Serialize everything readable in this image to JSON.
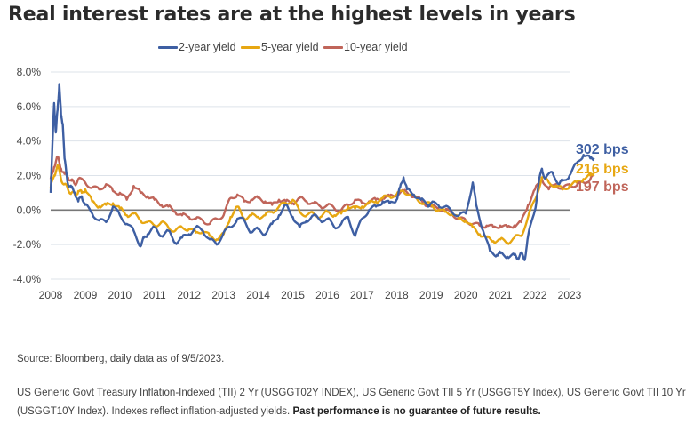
{
  "title": "Real interest rates are at the highest levels in years",
  "footer": {
    "source": "Source: Bloomberg, daily data as of 9/5/2023.",
    "notes": "US Generic Govt Treasury Inflation-Indexed (TII) 2 Yr (USGGT02Y INDEX), US Generic Govt TII 5 Yr (USGGT5Y Index), US Generic Govt TII 10 Yr (USGGT10Y Index). Indexes reflect inflation-adjusted yields.",
    "disclaimer": "Past performance is no guarantee of future results."
  },
  "chart_data": {
    "type": "line",
    "title": "Real interest rates are at the highest levels in years",
    "xlabel": "",
    "ylabel": "",
    "xlim": [
      2008,
      2023
    ],
    "ylim": [
      -4.0,
      8.0
    ],
    "x_ticks": [
      "2008",
      "2009",
      "2010",
      "2011",
      "2012",
      "2013",
      "2014",
      "2015",
      "2016",
      "2017",
      "2018",
      "2019",
      "2020",
      "2021",
      "2022",
      "2023"
    ],
    "y_ticks": [
      "8.0%",
      "6.0%",
      "4.0%",
      "2.0%",
      "0.0%",
      "-2.0%",
      "-4.0%"
    ],
    "y_tick_values": [
      8,
      6,
      4,
      2,
      0,
      -2,
      -4
    ],
    "grid": true,
    "legend_position": "top-center",
    "series": [
      {
        "name": "2-year yield",
        "color": "#3e5fa3",
        "end_label": "302 bps",
        "x": [
          2008.0,
          2008.1,
          2008.15,
          2008.2,
          2008.25,
          2008.3,
          2008.35,
          2008.4,
          2008.5,
          2008.6,
          2008.7,
          2008.8,
          2008.9,
          2009.0,
          2009.2,
          2009.4,
          2009.6,
          2009.8,
          2010.0,
          2010.2,
          2010.4,
          2010.6,
          2010.7,
          2010.8,
          2011.0,
          2011.2,
          2011.4,
          2011.6,
          2011.8,
          2012.0,
          2012.2,
          2012.4,
          2012.6,
          2012.8,
          2013.0,
          2013.2,
          2013.4,
          2013.6,
          2013.8,
          2014.0,
          2014.2,
          2014.4,
          2014.6,
          2014.8,
          2015.0,
          2015.2,
          2015.4,
          2015.6,
          2015.8,
          2016.0,
          2016.2,
          2016.4,
          2016.6,
          2016.8,
          2017.0,
          2017.2,
          2017.4,
          2017.6,
          2017.8,
          2018.0,
          2018.1,
          2018.2,
          2018.3,
          2018.5,
          2018.7,
          2018.9,
          2019.0,
          2019.2,
          2019.4,
          2019.6,
          2019.8,
          2020.0,
          2020.2,
          2020.3,
          2020.5,
          2020.7,
          2020.9,
          2021.0,
          2021.2,
          2021.4,
          2021.5,
          2021.6,
          2021.7,
          2021.8,
          2022.0,
          2022.1,
          2022.2,
          2022.3,
          2022.5,
          2022.7,
          2022.8,
          2023.0,
          2023.2,
          2023.4,
          2023.6,
          2023.7
        ],
        "values": [
          1.0,
          6.2,
          4.5,
          5.8,
          7.3,
          5.5,
          5.0,
          3.0,
          1.5,
          1.3,
          1.0,
          0.5,
          0.8,
          0.3,
          -0.2,
          -0.6,
          -0.7,
          0.2,
          -0.3,
          -0.8,
          -1.2,
          -2.1,
          -1.6,
          -1.4,
          -1.0,
          -1.5,
          -1.2,
          -1.9,
          -1.6,
          -1.4,
          -1.0,
          -1.2,
          -1.7,
          -2.0,
          -1.3,
          -1.0,
          -0.5,
          -0.6,
          -1.3,
          -1.1,
          -1.4,
          -0.8,
          -0.3,
          0.3,
          -0.4,
          -1.0,
          -0.6,
          -0.3,
          -0.6,
          -0.5,
          -1.0,
          -0.8,
          -0.4,
          -1.5,
          -0.5,
          0.0,
          0.2,
          0.5,
          0.4,
          0.6,
          1.3,
          1.9,
          1.2,
          0.9,
          0.6,
          0.3,
          0.4,
          0.3,
          0.2,
          -0.1,
          -0.3,
          -0.2,
          1.6,
          0.3,
          -1.2,
          -2.4,
          -2.6,
          -2.5,
          -2.7,
          -2.6,
          -2.8,
          -2.5,
          -2.9,
          -1.5,
          0.0,
          1.5,
          2.4,
          1.8,
          2.2,
          1.5,
          1.7,
          2.0,
          2.7,
          3.2,
          3.0,
          3.02
        ]
      },
      {
        "name": "5-year yield",
        "color": "#e7a712",
        "end_label": "216 bps",
        "x": [
          2008.0,
          2008.1,
          2008.2,
          2008.3,
          2008.4,
          2008.5,
          2008.6,
          2008.7,
          2008.8,
          2008.9,
          2009.0,
          2009.2,
          2009.4,
          2009.6,
          2009.8,
          2010.0,
          2010.2,
          2010.4,
          2010.6,
          2010.8,
          2011.0,
          2011.2,
          2011.4,
          2011.6,
          2011.8,
          2012.0,
          2012.2,
          2012.4,
          2012.6,
          2012.8,
          2013.0,
          2013.2,
          2013.4,
          2013.6,
          2013.8,
          2014.0,
          2014.2,
          2014.4,
          2014.6,
          2014.8,
          2015.0,
          2015.2,
          2015.4,
          2015.6,
          2015.8,
          2016.0,
          2016.2,
          2016.4,
          2016.6,
          2016.8,
          2017.0,
          2017.2,
          2017.4,
          2017.6,
          2017.8,
          2018.0,
          2018.2,
          2018.4,
          2018.6,
          2018.8,
          2019.0,
          2019.2,
          2019.4,
          2019.6,
          2019.8,
          2020.0,
          2020.2,
          2020.4,
          2020.6,
          2020.8,
          2021.0,
          2021.2,
          2021.4,
          2021.6,
          2021.8,
          2022.0,
          2022.2,
          2022.4,
          2022.6,
          2022.8,
          2023.0,
          2023.2,
          2023.4,
          2023.6,
          2023.7
        ],
        "values": [
          1.3,
          2.0,
          2.6,
          1.8,
          1.5,
          1.2,
          1.0,
          0.9,
          1.1,
          1.0,
          1.2,
          0.5,
          0.2,
          0.3,
          0.4,
          0.1,
          -0.3,
          -0.2,
          -0.6,
          -0.7,
          -0.9,
          -0.7,
          -1.0,
          -1.2,
          -1.0,
          -1.1,
          -1.3,
          -1.2,
          -1.5,
          -1.7,
          -1.4,
          -0.4,
          0.2,
          -0.5,
          -0.3,
          -0.4,
          -0.3,
          -0.1,
          0.2,
          0.4,
          0.6,
          -0.1,
          -0.3,
          -0.2,
          -0.4,
          -0.1,
          -0.3,
          -0.2,
          0.2,
          0.1,
          0.2,
          0.4,
          0.5,
          0.7,
          0.8,
          0.9,
          1.1,
          0.9,
          0.6,
          0.4,
          0.3,
          0.0,
          -0.1,
          -0.2,
          -0.5,
          -0.6,
          -1.0,
          -1.4,
          -1.6,
          -1.8,
          -1.7,
          -1.9,
          -1.6,
          -1.5,
          -0.4,
          0.6,
          1.9,
          1.6,
          1.4,
          1.2,
          1.4,
          1.6,
          1.8,
          2.0,
          2.16
        ]
      },
      {
        "name": "10-year yield",
        "color": "#c0655a",
        "end_label": "197 bps",
        "x": [
          2008.0,
          2008.1,
          2008.2,
          2008.3,
          2008.4,
          2008.5,
          2008.6,
          2008.7,
          2008.8,
          2009.0,
          2009.2,
          2009.4,
          2009.6,
          2009.8,
          2010.0,
          2010.2,
          2010.4,
          2010.6,
          2010.8,
          2011.0,
          2011.2,
          2011.4,
          2011.6,
          2011.8,
          2012.0,
          2012.2,
          2012.4,
          2012.6,
          2012.8,
          2013.0,
          2013.2,
          2013.4,
          2013.6,
          2013.8,
          2014.0,
          2014.2,
          2014.4,
          2014.6,
          2014.8,
          2015.0,
          2015.2,
          2015.4,
          2015.6,
          2015.8,
          2016.0,
          2016.2,
          2016.4,
          2016.6,
          2016.8,
          2017.0,
          2017.2,
          2017.4,
          2017.6,
          2017.8,
          2018.0,
          2018.2,
          2018.4,
          2018.6,
          2018.8,
          2019.0,
          2019.2,
          2019.4,
          2019.6,
          2019.8,
          2020.0,
          2020.2,
          2020.4,
          2020.6,
          2020.8,
          2021.0,
          2021.2,
          2021.4,
          2021.6,
          2021.8,
          2022.0,
          2022.2,
          2022.4,
          2022.6,
          2022.8,
          2023.0,
          2023.2,
          2023.4,
          2023.6,
          2023.7
        ],
        "values": [
          1.8,
          2.5,
          3.1,
          2.4,
          2.1,
          1.9,
          1.7,
          1.5,
          1.8,
          1.6,
          1.3,
          1.2,
          1.5,
          1.1,
          1.0,
          0.6,
          1.4,
          1.0,
          0.8,
          0.6,
          0.3,
          0.2,
          -0.1,
          -0.3,
          -0.4,
          -0.5,
          -0.6,
          -0.8,
          -0.5,
          -0.3,
          0.7,
          0.9,
          0.5,
          0.6,
          0.7,
          0.5,
          0.3,
          0.6,
          0.5,
          0.4,
          0.7,
          0.5,
          0.4,
          0.2,
          0.3,
          0.1,
          0.0,
          0.3,
          0.6,
          0.4,
          0.5,
          0.6,
          0.7,
          0.8,
          0.9,
          1.1,
          0.9,
          0.7,
          0.4,
          0.2,
          0.1,
          0.0,
          -0.2,
          -0.5,
          -0.6,
          -0.8,
          -0.9,
          -0.9,
          -1.0,
          -0.9,
          -1.0,
          -0.9,
          -0.7,
          0.3,
          1.2,
          1.8,
          1.2,
          1.5,
          1.2,
          1.5,
          1.4,
          1.6,
          1.8,
          1.97
        ]
      }
    ]
  }
}
